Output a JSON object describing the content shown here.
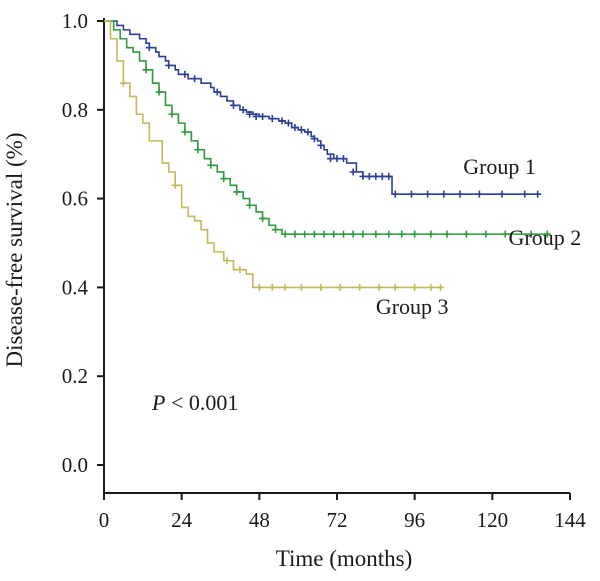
{
  "chart_data": {
    "type": "line",
    "subtype": "kaplan-meier",
    "title": "",
    "xlabel": "Time (months)",
    "ylabel": "Disease-free survival (%)",
    "xlim": [
      0,
      144
    ],
    "ylim": [
      0,
      1.0
    ],
    "xticks": [
      "0",
      "24",
      "48",
      "72",
      "96",
      "120",
      "144"
    ],
    "yticks": [
      "0.0",
      "0.2",
      "0.4",
      "0.6",
      "0.8",
      "1.0"
    ],
    "grid": false,
    "annotation": {
      "italic": "P",
      "rest": " < 0.001"
    },
    "series": [
      {
        "name": "Group 1",
        "color": "#2b3f96",
        "steps": [
          [
            0,
            1.0
          ],
          [
            4,
            0.99
          ],
          [
            6,
            0.98
          ],
          [
            8,
            0.97
          ],
          [
            11,
            0.96
          ],
          [
            13,
            0.95
          ],
          [
            14,
            0.94
          ],
          [
            16,
            0.93
          ],
          [
            17,
            0.92
          ],
          [
            19,
            0.91
          ],
          [
            20,
            0.9
          ],
          [
            22,
            0.89
          ],
          [
            23,
            0.88
          ],
          [
            26,
            0.87
          ],
          [
            30,
            0.86
          ],
          [
            33,
            0.85
          ],
          [
            34,
            0.84
          ],
          [
            36,
            0.83
          ],
          [
            38,
            0.82
          ],
          [
            40,
            0.81
          ],
          [
            42,
            0.8
          ],
          [
            44,
            0.795
          ],
          [
            46,
            0.79
          ],
          [
            48,
            0.785
          ],
          [
            51,
            0.78
          ],
          [
            54,
            0.775
          ],
          [
            56,
            0.77
          ],
          [
            58,
            0.76
          ],
          [
            60,
            0.755
          ],
          [
            62,
            0.75
          ],
          [
            64,
            0.74
          ],
          [
            65,
            0.735
          ],
          [
            66,
            0.73
          ],
          [
            67,
            0.72
          ],
          [
            68,
            0.71
          ],
          [
            69,
            0.7
          ],
          [
            71,
            0.69
          ],
          [
            75,
            0.68
          ],
          [
            78,
            0.66
          ],
          [
            80,
            0.65
          ],
          [
            88,
            0.65
          ],
          [
            89,
            0.61
          ],
          [
            135,
            0.61
          ]
        ],
        "censors": [
          [
            14,
            0.94
          ],
          [
            20,
            0.9
          ],
          [
            25,
            0.88
          ],
          [
            28,
            0.87
          ],
          [
            35,
            0.84
          ],
          [
            40,
            0.81
          ],
          [
            43,
            0.8
          ],
          [
            45,
            0.79
          ],
          [
            47,
            0.785
          ],
          [
            49,
            0.785
          ],
          [
            52,
            0.78
          ],
          [
            55,
            0.775
          ],
          [
            57,
            0.77
          ],
          [
            59,
            0.76
          ],
          [
            61,
            0.755
          ],
          [
            63,
            0.75
          ],
          [
            65,
            0.735
          ],
          [
            67,
            0.72
          ],
          [
            70,
            0.69
          ],
          [
            72,
            0.69
          ],
          [
            74,
            0.69
          ],
          [
            77,
            0.66
          ],
          [
            80,
            0.65
          ],
          [
            82,
            0.65
          ],
          [
            84,
            0.65
          ],
          [
            86,
            0.65
          ],
          [
            88,
            0.65
          ],
          [
            90,
            0.61
          ],
          [
            95,
            0.61
          ],
          [
            100,
            0.61
          ],
          [
            105,
            0.61
          ],
          [
            110,
            0.61
          ],
          [
            116,
            0.61
          ],
          [
            123,
            0.61
          ],
          [
            130,
            0.61
          ],
          [
            134,
            0.61
          ]
        ],
        "label_at": [
          111,
          0.655
        ]
      },
      {
        "name": "Group 2",
        "color": "#2e9a3e",
        "steps": [
          [
            0,
            1.0
          ],
          [
            3,
            0.98
          ],
          [
            5,
            0.96
          ],
          [
            7,
            0.94
          ],
          [
            9,
            0.93
          ],
          [
            11,
            0.91
          ],
          [
            13,
            0.89
          ],
          [
            15,
            0.86
          ],
          [
            17,
            0.84
          ],
          [
            19,
            0.81
          ],
          [
            21,
            0.79
          ],
          [
            23,
            0.77
          ],
          [
            25,
            0.75
          ],
          [
            27,
            0.73
          ],
          [
            29,
            0.71
          ],
          [
            31,
            0.69
          ],
          [
            33,
            0.675
          ],
          [
            35,
            0.66
          ],
          [
            37,
            0.645
          ],
          [
            39,
            0.63
          ],
          [
            41,
            0.615
          ],
          [
            43,
            0.6
          ],
          [
            45,
            0.585
          ],
          [
            47,
            0.57
          ],
          [
            49,
            0.555
          ],
          [
            51,
            0.54
          ],
          [
            53,
            0.53
          ],
          [
            55,
            0.52
          ],
          [
            138,
            0.52
          ]
        ],
        "censors": [
          [
            13,
            0.89
          ],
          [
            17,
            0.84
          ],
          [
            21,
            0.79
          ],
          [
            25,
            0.75
          ],
          [
            29,
            0.71
          ],
          [
            33,
            0.675
          ],
          [
            37,
            0.645
          ],
          [
            41,
            0.615
          ],
          [
            45,
            0.585
          ],
          [
            49,
            0.555
          ],
          [
            53,
            0.53
          ],
          [
            56,
            0.52
          ],
          [
            59,
            0.52
          ],
          [
            62,
            0.52
          ],
          [
            65,
            0.52
          ],
          [
            68,
            0.52
          ],
          [
            71,
            0.52
          ],
          [
            74,
            0.52
          ],
          [
            77,
            0.52
          ],
          [
            80,
            0.52
          ],
          [
            84,
            0.52
          ],
          [
            88,
            0.52
          ],
          [
            92,
            0.52
          ],
          [
            96,
            0.52
          ],
          [
            101,
            0.52
          ],
          [
            106,
            0.52
          ],
          [
            112,
            0.52
          ],
          [
            118,
            0.52
          ],
          [
            124,
            0.52
          ],
          [
            132,
            0.52
          ],
          [
            137,
            0.52
          ]
        ],
        "label_at": [
          125,
          0.495
        ]
      },
      {
        "name": "Group 3",
        "color": "#c5b85c",
        "steps": [
          [
            0,
            1.0
          ],
          [
            2,
            0.96
          ],
          [
            4,
            0.91
          ],
          [
            6,
            0.86
          ],
          [
            8,
            0.83
          ],
          [
            10,
            0.79
          ],
          [
            12,
            0.77
          ],
          [
            14,
            0.73
          ],
          [
            18,
            0.68
          ],
          [
            20,
            0.66
          ],
          [
            22,
            0.63
          ],
          [
            24,
            0.58
          ],
          [
            26,
            0.56
          ],
          [
            28,
            0.55
          ],
          [
            30,
            0.53
          ],
          [
            32,
            0.5
          ],
          [
            34,
            0.48
          ],
          [
            37,
            0.46
          ],
          [
            40,
            0.44
          ],
          [
            44,
            0.43
          ],
          [
            46,
            0.4
          ],
          [
            105,
            0.4
          ]
        ],
        "censors": [
          [
            6,
            0.86
          ],
          [
            22,
            0.63
          ],
          [
            38,
            0.46
          ],
          [
            42,
            0.44
          ],
          [
            48,
            0.4
          ],
          [
            52,
            0.4
          ],
          [
            56,
            0.4
          ],
          [
            61,
            0.4
          ],
          [
            67,
            0.4
          ],
          [
            73,
            0.4
          ],
          [
            79,
            0.4
          ],
          [
            85,
            0.4
          ],
          [
            90,
            0.4
          ],
          [
            96,
            0.4
          ],
          [
            101,
            0.4
          ],
          [
            104,
            0.4
          ]
        ],
        "label_at": [
          84,
          0.34
        ]
      }
    ]
  }
}
